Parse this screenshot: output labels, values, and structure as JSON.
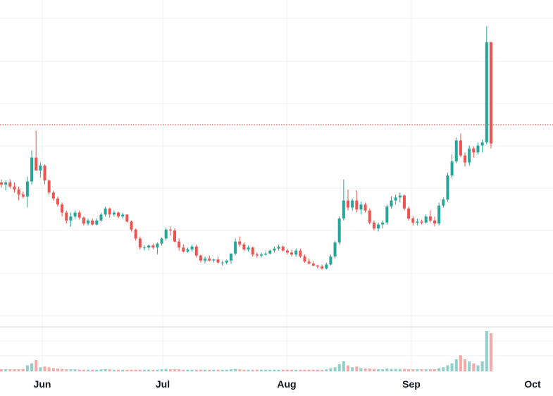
{
  "chart_data": {
    "type": "candlestick",
    "x_ticks": [
      "Jun",
      "Jul",
      "Aug",
      "Sep",
      "Oct"
    ],
    "grid": true,
    "colors": {
      "up": "#26a69a",
      "down": "#ef5350",
      "up_volume": "#8fd1c9",
      "down_volume": "#f7a9a7",
      "price_line": "#e53935"
    },
    "current_price": 88.0,
    "price_range": [
      0,
      230
    ],
    "volume_range": [
      0,
      100
    ],
    "candles": [
      {
        "o": 50,
        "h": 53,
        "l": 45,
        "c": 48,
        "v": 5
      },
      {
        "o": 48,
        "h": 52,
        "l": 42,
        "c": 50,
        "v": 5
      },
      {
        "o": 50,
        "h": 53,
        "l": 44,
        "c": 46,
        "v": 5
      },
      {
        "o": 46,
        "h": 50,
        "l": 40,
        "c": 43,
        "v": 5
      },
      {
        "o": 43,
        "h": 46,
        "l": 32,
        "c": 38,
        "v": 5
      },
      {
        "o": 38,
        "h": 41,
        "l": 34,
        "c": 36,
        "v": 6
      },
      {
        "o": 36,
        "h": 56,
        "l": 25,
        "c": 51,
        "v": 15
      },
      {
        "o": 51,
        "h": 82,
        "l": 48,
        "c": 75,
        "v": 20
      },
      {
        "o": 75,
        "h": 102,
        "l": 62,
        "c": 62,
        "v": 28
      },
      {
        "o": 62,
        "h": 70,
        "l": 55,
        "c": 67,
        "v": 10
      },
      {
        "o": 67,
        "h": 68,
        "l": 48,
        "c": 52,
        "v": 12
      },
      {
        "o": 52,
        "h": 53,
        "l": 38,
        "c": 40,
        "v": 10
      },
      {
        "o": 40,
        "h": 42,
        "l": 32,
        "c": 34,
        "v": 8
      },
      {
        "o": 34,
        "h": 36,
        "l": 26,
        "c": 28,
        "v": 7
      },
      {
        "o": 28,
        "h": 30,
        "l": 16,
        "c": 20,
        "v": 6
      },
      {
        "o": 20,
        "h": 22,
        "l": 9,
        "c": 12,
        "v": 5
      },
      {
        "o": 12,
        "h": 20,
        "l": 6,
        "c": 16,
        "v": 5
      },
      {
        "o": 16,
        "h": 22,
        "l": 14,
        "c": 20,
        "v": 5
      },
      {
        "o": 20,
        "h": 22,
        "l": 13,
        "c": 15,
        "v": 4
      },
      {
        "o": 15,
        "h": 16,
        "l": 7,
        "c": 9,
        "v": 4
      },
      {
        "o": 9,
        "h": 14,
        "l": 7,
        "c": 12,
        "v": 4
      },
      {
        "o": 12,
        "h": 14,
        "l": 7,
        "c": 8,
        "v": 4
      },
      {
        "o": 8,
        "h": 14,
        "l": 7,
        "c": 12,
        "v": 4
      },
      {
        "o": 12,
        "h": 20,
        "l": 11,
        "c": 18,
        "v": 5
      },
      {
        "o": 18,
        "h": 26,
        "l": 16,
        "c": 24,
        "v": 6
      },
      {
        "o": 24,
        "h": 25,
        "l": 15,
        "c": 18,
        "v": 5
      },
      {
        "o": 18,
        "h": 22,
        "l": 16,
        "c": 20,
        "v": 4
      },
      {
        "o": 20,
        "h": 21,
        "l": 14,
        "c": 16,
        "v": 4
      },
      {
        "o": 16,
        "h": 20,
        "l": 14,
        "c": 18,
        "v": 4
      },
      {
        "o": 18,
        "h": 18,
        "l": 10,
        "c": 11,
        "v": 4
      },
      {
        "o": 11,
        "h": 12,
        "l": 1,
        "c": 3,
        "v": 4
      },
      {
        "o": 3,
        "h": 4,
        "l": -8,
        "c": -6,
        "v": 4
      },
      {
        "o": -6,
        "h": -4,
        "l": -17,
        "c": -15,
        "v": 4
      },
      {
        "o": -15,
        "h": -13,
        "l": -18,
        "c": -15,
        "v": 4
      },
      {
        "o": -15,
        "h": -12,
        "l": -18,
        "c": -13,
        "v": 4
      },
      {
        "o": -13,
        "h": -11,
        "l": -17,
        "c": -15,
        "v": 4
      },
      {
        "o": -15,
        "h": -10,
        "l": -22,
        "c": -11,
        "v": 4
      },
      {
        "o": -11,
        "h": -5,
        "l": -13,
        "c": -6,
        "v": 5
      },
      {
        "o": -6,
        "h": 5,
        "l": -8,
        "c": 3,
        "v": 6
      },
      {
        "o": 3,
        "h": 6,
        "l": -3,
        "c": 2,
        "v": 5
      },
      {
        "o": 2,
        "h": 4,
        "l": -10,
        "c": -9,
        "v": 5
      },
      {
        "o": -9,
        "h": -6,
        "l": -18,
        "c": -15,
        "v": 5
      },
      {
        "o": -15,
        "h": -12,
        "l": -20,
        "c": -19,
        "v": 4
      },
      {
        "o": -19,
        "h": -15,
        "l": -20,
        "c": -17,
        "v": 4
      },
      {
        "o": -17,
        "h": -12,
        "l": -19,
        "c": -14,
        "v": 4
      },
      {
        "o": -14,
        "h": -12,
        "l": -25,
        "c": -23,
        "v": 4
      },
      {
        "o": -23,
        "h": -22,
        "l": -30,
        "c": -28,
        "v": 4
      },
      {
        "o": -28,
        "h": -24,
        "l": -31,
        "c": -26,
        "v": 4
      },
      {
        "o": -26,
        "h": -23,
        "l": -29,
        "c": -28,
        "v": 4
      },
      {
        "o": -28,
        "h": -26,
        "l": -30,
        "c": -27,
        "v": 4
      },
      {
        "o": -27,
        "h": -24,
        "l": -31,
        "c": -30,
        "v": 4
      },
      {
        "o": -30,
        "h": -28,
        "l": -33,
        "c": -30,
        "v": 4
      },
      {
        "o": -30,
        "h": -27,
        "l": -32,
        "c": -28,
        "v": 4
      },
      {
        "o": -28,
        "h": -21,
        "l": -31,
        "c": -21,
        "v": 5
      },
      {
        "o": -21,
        "h": -6,
        "l": -23,
        "c": -9,
        "v": 6
      },
      {
        "o": -9,
        "h": -4,
        "l": -14,
        "c": -12,
        "v": 5
      },
      {
        "o": -12,
        "h": -10,
        "l": -18,
        "c": -17,
        "v": 4
      },
      {
        "o": -17,
        "h": -13,
        "l": -19,
        "c": -15,
        "v": 4
      },
      {
        "o": -15,
        "h": -14,
        "l": -24,
        "c": -22,
        "v": 4
      },
      {
        "o": -22,
        "h": -20,
        "l": -25,
        "c": -23,
        "v": 4
      },
      {
        "o": -23,
        "h": -20,
        "l": -25,
        "c": -22,
        "v": 4
      },
      {
        "o": -22,
        "h": -19,
        "l": -23,
        "c": -21,
        "v": 4
      },
      {
        "o": -21,
        "h": -17,
        "l": -22,
        "c": -18,
        "v": 4
      },
      {
        "o": -18,
        "h": -14,
        "l": -20,
        "c": -16,
        "v": 4
      },
      {
        "o": -16,
        "h": -12,
        "l": -18,
        "c": -14,
        "v": 4
      },
      {
        "o": -14,
        "h": -13,
        "l": -19,
        "c": -18,
        "v": 4
      },
      {
        "o": -18,
        "h": -16,
        "l": -22,
        "c": -20,
        "v": 4
      },
      {
        "o": -20,
        "h": -17,
        "l": -24,
        "c": -22,
        "v": 4
      },
      {
        "o": -22,
        "h": -16,
        "l": -24,
        "c": -18,
        "v": 4
      },
      {
        "o": -18,
        "h": -16,
        "l": -25,
        "c": -24,
        "v": 4
      },
      {
        "o": -24,
        "h": -22,
        "l": -30,
        "c": -29,
        "v": 4
      },
      {
        "o": -29,
        "h": -26,
        "l": -32,
        "c": -31,
        "v": 4
      },
      {
        "o": -31,
        "h": -29,
        "l": -34,
        "c": -33,
        "v": 4
      },
      {
        "o": -33,
        "h": -32,
        "l": -36,
        "c": -34,
        "v": 4
      },
      {
        "o": -34,
        "h": -32,
        "l": -37,
        "c": -36,
        "v": 4
      },
      {
        "o": -36,
        "h": -30,
        "l": -37,
        "c": -32,
        "v": 5
      },
      {
        "o": -32,
        "h": -22,
        "l": -33,
        "c": -24,
        "v": 8
      },
      {
        "o": -24,
        "h": -8,
        "l": -26,
        "c": -10,
        "v": 10
      },
      {
        "o": -10,
        "h": 16,
        "l": -12,
        "c": 14,
        "v": 18
      },
      {
        "o": 14,
        "h": 53,
        "l": 12,
        "c": 32,
        "v": 25
      },
      {
        "o": 32,
        "h": 43,
        "l": 22,
        "c": 25,
        "v": 15
      },
      {
        "o": 25,
        "h": 34,
        "l": 22,
        "c": 32,
        "v": 10
      },
      {
        "o": 32,
        "h": 42,
        "l": 20,
        "c": 23,
        "v": 12
      },
      {
        "o": 23,
        "h": 31,
        "l": 18,
        "c": 28,
        "v": 8
      },
      {
        "o": 28,
        "h": 30,
        "l": 20,
        "c": 22,
        "v": 7
      },
      {
        "o": 22,
        "h": 24,
        "l": 8,
        "c": 10,
        "v": 7
      },
      {
        "o": 10,
        "h": 12,
        "l": 2,
        "c": 4,
        "v": 6
      },
      {
        "o": 4,
        "h": 10,
        "l": 1,
        "c": 8,
        "v": 5
      },
      {
        "o": 8,
        "h": 12,
        "l": 4,
        "c": 10,
        "v": 5
      },
      {
        "o": 10,
        "h": 28,
        "l": 8,
        "c": 26,
        "v": 7
      },
      {
        "o": 26,
        "h": 36,
        "l": 24,
        "c": 32,
        "v": 6
      },
      {
        "o": 32,
        "h": 38,
        "l": 28,
        "c": 35,
        "v": 6
      },
      {
        "o": 35,
        "h": 40,
        "l": 30,
        "c": 37,
        "v": 6
      },
      {
        "o": 37,
        "h": 38,
        "l": 22,
        "c": 24,
        "v": 6
      },
      {
        "o": 24,
        "h": 26,
        "l": 12,
        "c": 14,
        "v": 5
      },
      {
        "o": 14,
        "h": 16,
        "l": 7,
        "c": 10,
        "v": 5
      },
      {
        "o": 10,
        "h": 14,
        "l": 7,
        "c": 11,
        "v": 5
      },
      {
        "o": 11,
        "h": 13,
        "l": 8,
        "c": 10,
        "v": 5
      },
      {
        "o": 10,
        "h": 18,
        "l": 9,
        "c": 16,
        "v": 5
      },
      {
        "o": 16,
        "h": 22,
        "l": 10,
        "c": 12,
        "v": 5
      },
      {
        "o": 12,
        "h": 16,
        "l": 6,
        "c": 9,
        "v": 5
      },
      {
        "o": 9,
        "h": 30,
        "l": 7,
        "c": 27,
        "v": 8
      },
      {
        "o": 27,
        "h": 35,
        "l": 25,
        "c": 33,
        "v": 10
      },
      {
        "o": 33,
        "h": 60,
        "l": 31,
        "c": 57,
        "v": 15
      },
      {
        "o": 57,
        "h": 78,
        "l": 55,
        "c": 71,
        "v": 20
      },
      {
        "o": 71,
        "h": 95,
        "l": 69,
        "c": 92,
        "v": 30
      },
      {
        "o": 92,
        "h": 99,
        "l": 75,
        "c": 77,
        "v": 40
      },
      {
        "o": 77,
        "h": 80,
        "l": 66,
        "c": 70,
        "v": 30
      },
      {
        "o": 70,
        "h": 87,
        "l": 67,
        "c": 84,
        "v": 25
      },
      {
        "o": 84,
        "h": 86,
        "l": 75,
        "c": 80,
        "v": 20
      },
      {
        "o": 80,
        "h": 90,
        "l": 78,
        "c": 87,
        "v": 15
      },
      {
        "o": 87,
        "h": 93,
        "l": 80,
        "c": 90,
        "v": 25
      },
      {
        "o": 90,
        "h": 206,
        "l": 88,
        "c": 190,
        "v": 100
      },
      {
        "o": 190,
        "h": 191,
        "l": 84,
        "c": 89,
        "v": 95
      }
    ]
  }
}
